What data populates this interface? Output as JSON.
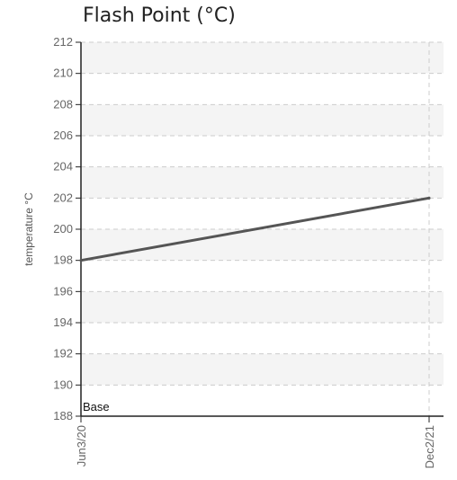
{
  "chart_data": {
    "type": "line",
    "title": "Flash Point (°C)",
    "xlabel": "",
    "ylabel": "temperature °C",
    "x": [
      "Jun3/20",
      "Dec2/21"
    ],
    "series": [
      {
        "values": [
          198,
          202
        ],
        "color": "#555555"
      }
    ],
    "ylim": [
      188,
      212
    ],
    "yticks": [
      188,
      190,
      192,
      194,
      196,
      198,
      200,
      202,
      204,
      206,
      208,
      210,
      212
    ],
    "grid": true,
    "legend": "none",
    "annotations": [
      {
        "text": "Base",
        "x": "Jun3/20"
      }
    ],
    "colors": {
      "band": "#f4f4f4",
      "grid": "#cccccc",
      "axis": "#222222",
      "line": "#555555"
    }
  }
}
